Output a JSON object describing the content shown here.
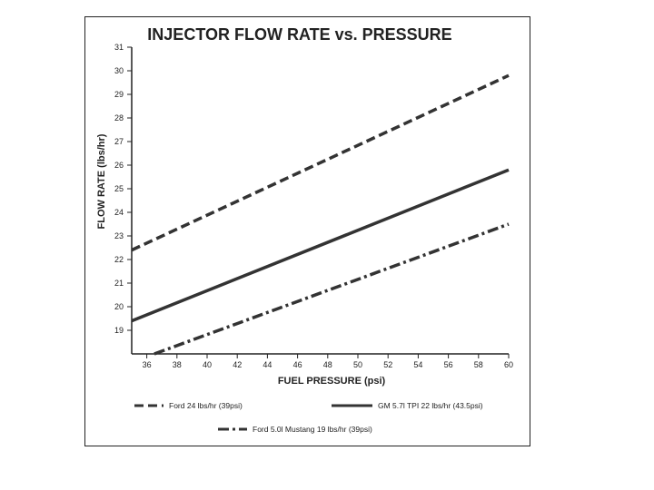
{
  "chart_data": {
    "type": "line",
    "title": "INJECTOR FLOW RATE vs. PRESSURE",
    "xlabel": "FUEL PRESSURE (psi)",
    "ylabel": "FLOW RATE (lbs/hr)",
    "xlim": [
      35,
      60
    ],
    "ylim": [
      18,
      31
    ],
    "x_ticks": [
      36,
      38,
      40,
      42,
      44,
      46,
      48,
      50,
      52,
      54,
      56,
      58,
      60
    ],
    "y_ticks": [
      19,
      20,
      21,
      22,
      23,
      24,
      25,
      26,
      27,
      28,
      29,
      30,
      31
    ],
    "grid": false,
    "series": [
      {
        "name": "Ford 24 lbs/hr (39psi)",
        "style": "dashed",
        "color": "#333333",
        "x": [
          35,
          60
        ],
        "y": [
          22.4,
          29.8
        ]
      },
      {
        "name": "GM 5.7l TPI 22 lbs/hr (43.5psi)",
        "style": "solid",
        "color": "#333333",
        "x": [
          35,
          60
        ],
        "y": [
          19.4,
          25.8
        ]
      },
      {
        "name": "Ford 5.0l Mustang 19 lbs/hr (39psi)",
        "style": "dashdot",
        "color": "#333333",
        "x": [
          36.5,
          60
        ],
        "y": [
          18.0,
          23.5
        ]
      }
    ],
    "legend": "bottom"
  }
}
